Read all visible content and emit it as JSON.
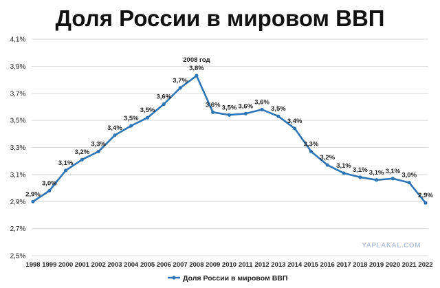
{
  "chart_data": {
    "type": "line",
    "title": "Доля России в мировом ВВП",
    "categories": [
      "1998",
      "1999",
      "2000",
      "2001",
      "2002",
      "2003",
      "2004",
      "2005",
      "2006",
      "2007",
      "2008",
      "2009",
      "2010",
      "2011",
      "2012",
      "2013",
      "2014",
      "2015",
      "2016",
      "2017",
      "2018",
      "2019",
      "2020",
      "2021",
      "2022"
    ],
    "series": [
      {
        "name": "Доля России в мировом ВВП",
        "color": "#2e75b6",
        "values": [
          2.9,
          2.98,
          3.13,
          3.21,
          3.27,
          3.39,
          3.46,
          3.52,
          3.62,
          3.74,
          3.83,
          3.56,
          3.54,
          3.55,
          3.58,
          3.53,
          3.44,
          3.27,
          3.17,
          3.11,
          3.08,
          3.06,
          3.07,
          3.04,
          2.89
        ],
        "data_labels": [
          "2,9%",
          "3,0%",
          "3,1%",
          "3,2%",
          "3,3%",
          "3,4%",
          "3,5%",
          "3,5%",
          "3,6%",
          "3,7%",
          "3,8%",
          "3,6%",
          "3,5%",
          "3,6%",
          "3,6%",
          "3,5%",
          "3,4%",
          "3,3%",
          "3,2%",
          "3,1%",
          "3,1%",
          "3,1%",
          "3,1%",
          "3,0%",
          "2,9%"
        ]
      }
    ],
    "annotations": [
      {
        "text": "2008 год",
        "category": "2008"
      }
    ],
    "ylim": [
      2.5,
      4.1
    ],
    "yticks": [
      2.5,
      2.7,
      2.9,
      3.1,
      3.3,
      3.5,
      3.7,
      3.9,
      4.1
    ],
    "ytick_labels": [
      "2,5%",
      "2,7%",
      "2,9%",
      "3,1%",
      "3,3%",
      "3,5%",
      "3,7%",
      "3,9%",
      "4,1%"
    ],
    "grid": true,
    "legend": "bottom",
    "xlabel": "",
    "ylabel": ""
  },
  "watermark": "YAPLAKAL.COM"
}
